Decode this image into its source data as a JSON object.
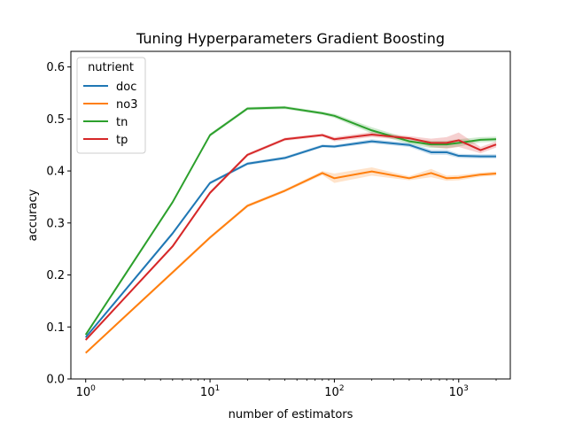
{
  "chart_data": {
    "type": "line",
    "title": "Tuning Hyperparameters Gradient Boosting",
    "xlabel": "number of estimators",
    "ylabel": "accuracy",
    "xscale": "log",
    "xlim": [
      0.76,
      2600
    ],
    "ylim": [
      0.0,
      0.63
    ],
    "xticks": [
      {
        "value": 1,
        "base": "10",
        "exp": "0"
      },
      {
        "value": 10,
        "base": "10",
        "exp": "1"
      },
      {
        "value": 100,
        "base": "10",
        "exp": "2"
      },
      {
        "value": 1000,
        "base": "10",
        "exp": "3"
      }
    ],
    "yticks": [
      {
        "value": 0.0,
        "label": "0.0"
      },
      {
        "value": 0.1,
        "label": "0.1"
      },
      {
        "value": 0.2,
        "label": "0.2"
      },
      {
        "value": 0.3,
        "label": "0.3"
      },
      {
        "value": 0.4,
        "label": "0.4"
      },
      {
        "value": 0.5,
        "label": "0.5"
      },
      {
        "value": 0.6,
        "label": "0.6"
      }
    ],
    "grid": false,
    "legend": {
      "title": "nutrient",
      "placement": "top-left"
    },
    "x": [
      1,
      5,
      10,
      20,
      40,
      80,
      100,
      200,
      400,
      600,
      800,
      1000,
      1500,
      2000
    ],
    "series": [
      {
        "name": "doc",
        "color": "#1f77b4",
        "values": [
          0.08,
          0.28,
          0.377,
          0.414,
          0.425,
          0.448,
          0.447,
          0.457,
          0.45,
          0.436,
          0.436,
          0.429,
          0.428,
          0.428
        ],
        "lower": [
          0.078,
          0.277,
          0.374,
          0.411,
          0.422,
          0.445,
          0.444,
          0.453,
          0.446,
          0.431,
          0.431,
          0.425,
          0.424,
          0.424
        ],
        "upper": [
          0.082,
          0.283,
          0.38,
          0.417,
          0.428,
          0.451,
          0.45,
          0.461,
          0.454,
          0.441,
          0.441,
          0.433,
          0.432,
          0.432
        ]
      },
      {
        "name": "no3",
        "color": "#ff7f0e",
        "values": [
          0.05,
          0.205,
          0.272,
          0.333,
          0.362,
          0.396,
          0.386,
          0.399,
          0.386,
          0.396,
          0.386,
          0.387,
          0.393,
          0.395
        ],
        "lower": [
          0.048,
          0.202,
          0.269,
          0.33,
          0.359,
          0.392,
          0.377,
          0.391,
          0.382,
          0.388,
          0.381,
          0.382,
          0.389,
          0.391
        ],
        "upper": [
          0.052,
          0.208,
          0.275,
          0.336,
          0.365,
          0.4,
          0.395,
          0.407,
          0.39,
          0.404,
          0.391,
          0.392,
          0.397,
          0.399
        ]
      },
      {
        "name": "tn",
        "color": "#2ca02c",
        "values": [
          0.085,
          0.34,
          0.469,
          0.52,
          0.522,
          0.511,
          0.506,
          0.478,
          0.457,
          0.451,
          0.451,
          0.454,
          0.46,
          0.461
        ],
        "lower": [
          0.083,
          0.337,
          0.466,
          0.517,
          0.519,
          0.508,
          0.502,
          0.472,
          0.452,
          0.444,
          0.444,
          0.447,
          0.455,
          0.456
        ],
        "upper": [
          0.087,
          0.343,
          0.472,
          0.523,
          0.525,
          0.514,
          0.51,
          0.484,
          0.462,
          0.458,
          0.458,
          0.461,
          0.465,
          0.466
        ]
      },
      {
        "name": "tp",
        "color": "#d62728",
        "values": [
          0.075,
          0.255,
          0.358,
          0.431,
          0.461,
          0.469,
          0.461,
          0.47,
          0.463,
          0.454,
          0.454,
          0.459,
          0.44,
          0.451
        ],
        "lower": [
          0.073,
          0.252,
          0.355,
          0.428,
          0.458,
          0.466,
          0.457,
          0.465,
          0.459,
          0.446,
          0.443,
          0.446,
          0.434,
          0.445
        ],
        "upper": [
          0.077,
          0.258,
          0.361,
          0.434,
          0.464,
          0.472,
          0.465,
          0.475,
          0.467,
          0.462,
          0.465,
          0.474,
          0.446,
          0.457
        ]
      }
    ]
  }
}
